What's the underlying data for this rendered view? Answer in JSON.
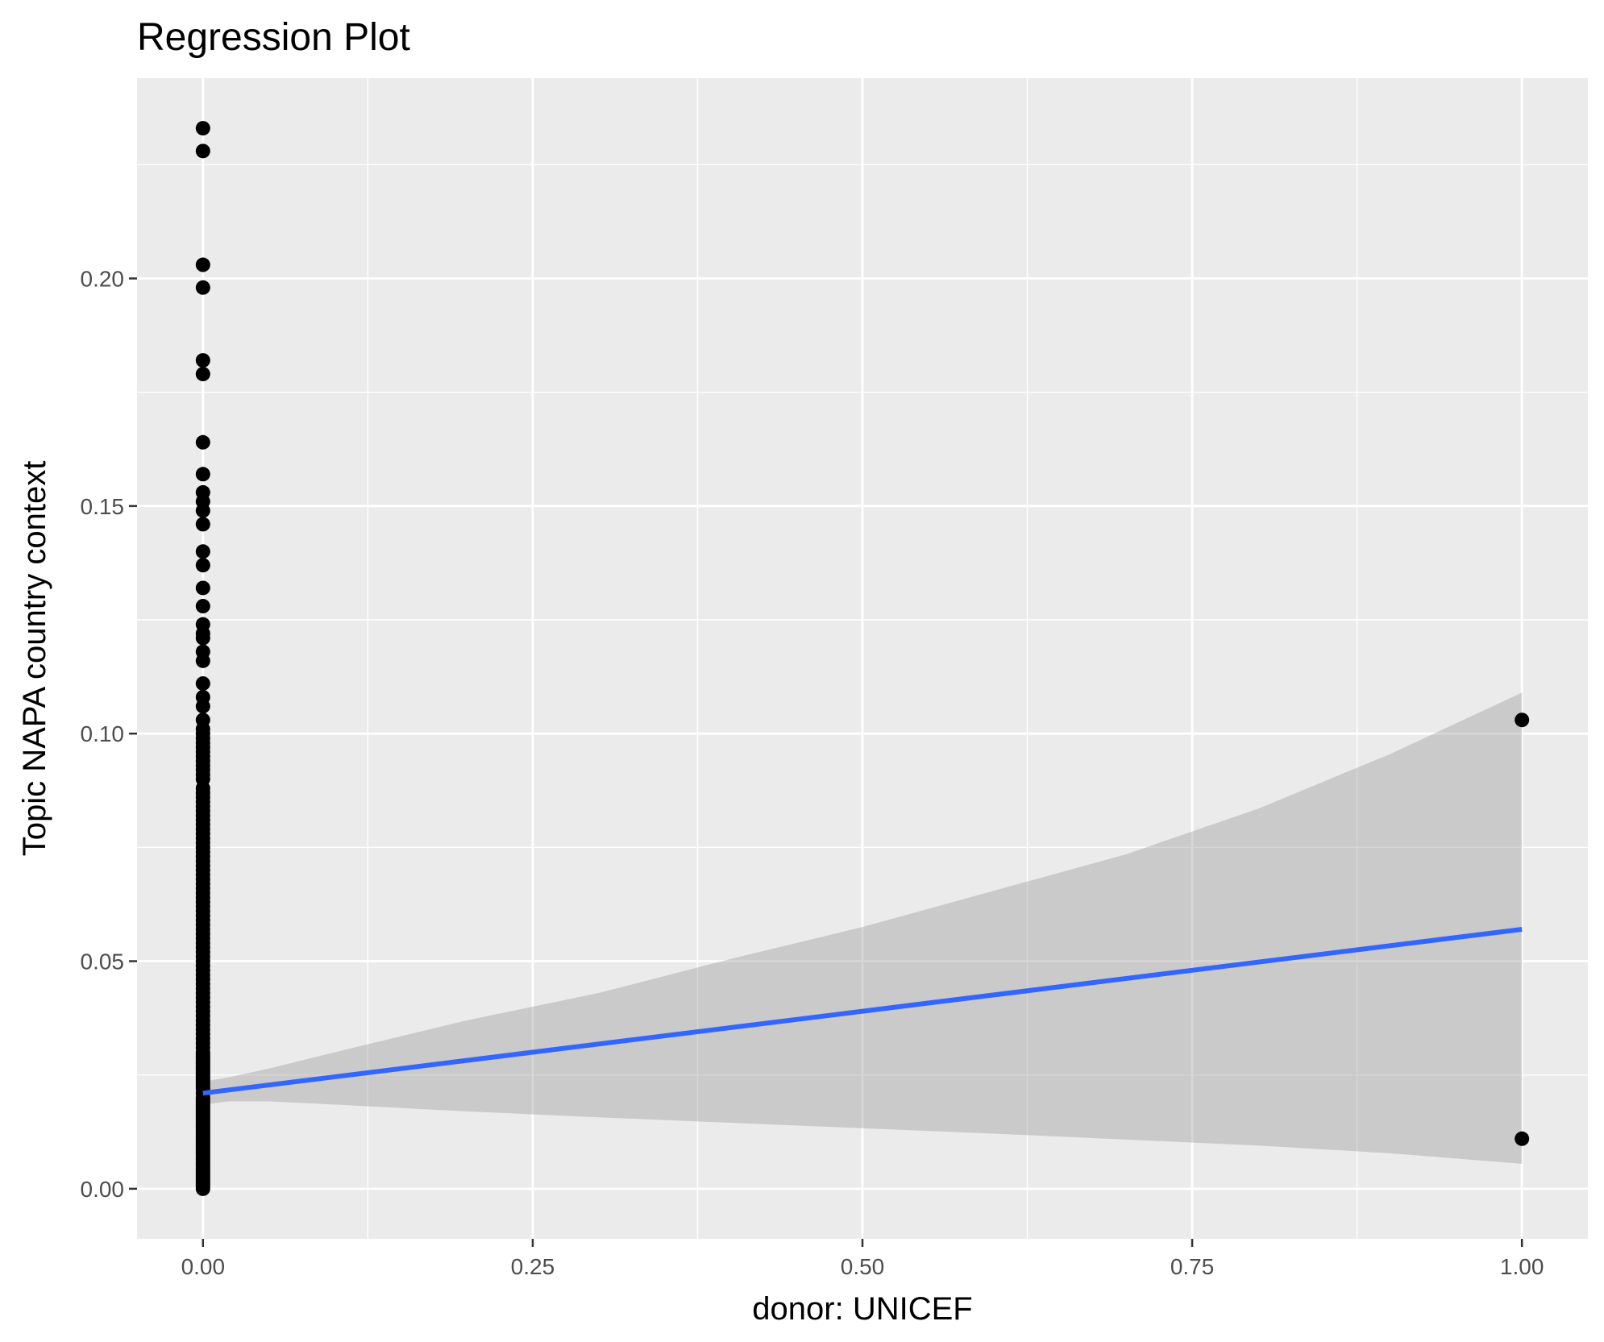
{
  "chart_data": {
    "type": "scatter",
    "title": "Regression Plot",
    "xlabel": "donor: UNICEF",
    "ylabel": "Topic NAPA country context",
    "xlim": [
      -0.05,
      1.05
    ],
    "ylim": [
      -0.011,
      0.244
    ],
    "x_ticks": [
      {
        "value": 0.0,
        "label": "0.00"
      },
      {
        "value": 0.25,
        "label": "0.25"
      },
      {
        "value": 0.5,
        "label": "0.50"
      },
      {
        "value": 0.75,
        "label": "0.75"
      },
      {
        "value": 1.0,
        "label": "1.00"
      }
    ],
    "y_ticks": [
      {
        "value": 0.0,
        "label": "0.00"
      },
      {
        "value": 0.05,
        "label": "0.05"
      },
      {
        "value": 0.1,
        "label": "0.10"
      },
      {
        "value": 0.15,
        "label": "0.15"
      },
      {
        "value": 0.2,
        "label": "0.20"
      }
    ],
    "grid": true,
    "legend": "none",
    "points": {
      "x": [
        0,
        0,
        0,
        0,
        0,
        0,
        0,
        0,
        0,
        0,
        0,
        0,
        0,
        0,
        0,
        0,
        0,
        0,
        0,
        0,
        0,
        0,
        0,
        0,
        0,
        0,
        0,
        0,
        0,
        0,
        0,
        0,
        0,
        0,
        0,
        0,
        0,
        0,
        0,
        0,
        0,
        0,
        0,
        0,
        0,
        0,
        0,
        0,
        0,
        0,
        0,
        0,
        0,
        0,
        0,
        0,
        0,
        0,
        0,
        0,
        0,
        0,
        0,
        0,
        0,
        0,
        0,
        0,
        0,
        0,
        0,
        0,
        0,
        0,
        0,
        0,
        0,
        0,
        0,
        0,
        0,
        0,
        0,
        0,
        0,
        0,
        0,
        0,
        0,
        0,
        0,
        0,
        0,
        0,
        0,
        0,
        0,
        0,
        0,
        0,
        0,
        0,
        0,
        0,
        0,
        0,
        0,
        0,
        0,
        0,
        0,
        0,
        0,
        0,
        0,
        0,
        0,
        0,
        0,
        0,
        0,
        0,
        0,
        0,
        0,
        0,
        0,
        0,
        0,
        0,
        0,
        0,
        0,
        0,
        0,
        0,
        0,
        0,
        0,
        0,
        0,
        0,
        0,
        0,
        0,
        0,
        0,
        0,
        0,
        0,
        0,
        0,
        0,
        0,
        1,
        1
      ],
      "y": [
        0.233,
        0.228,
        0.203,
        0.198,
        0.182,
        0.179,
        0.164,
        0.157,
        0.153,
        0.151,
        0.149,
        0.146,
        0.14,
        0.137,
        0.132,
        0.128,
        0.124,
        0.122,
        0.121,
        0.118,
        0.116,
        0.111,
        0.108,
        0.106,
        0.103,
        0.101,
        0.1,
        0.099,
        0.098,
        0.097,
        0.096,
        0.095,
        0.094,
        0.093,
        0.092,
        0.091,
        0.09,
        0.088,
        0.087,
        0.086,
        0.085,
        0.084,
        0.083,
        0.082,
        0.081,
        0.08,
        0.079,
        0.078,
        0.077,
        0.076,
        0.075,
        0.074,
        0.073,
        0.072,
        0.071,
        0.07,
        0.069,
        0.068,
        0.067,
        0.066,
        0.065,
        0.064,
        0.063,
        0.062,
        0.061,
        0.06,
        0.059,
        0.058,
        0.057,
        0.056,
        0.055,
        0.054,
        0.053,
        0.052,
        0.051,
        0.05,
        0.049,
        0.048,
        0.047,
        0.046,
        0.045,
        0.044,
        0.043,
        0.042,
        0.041,
        0.04,
        0.039,
        0.038,
        0.037,
        0.036,
        0.035,
        0.034,
        0.033,
        0.032,
        0.031,
        0.03,
        0.029,
        0.028,
        0.027,
        0.026,
        0.025,
        0.024,
        0.023,
        0.022,
        0.021,
        0.02,
        0.019,
        0.018,
        0.017,
        0.016,
        0.015,
        0.014,
        0.013,
        0.012,
        0.011,
        0.01,
        0.009,
        0.008,
        0.007,
        0.006,
        0.005,
        0.004,
        0.003,
        0.002,
        0.001,
        0.0,
        0.0095,
        0.0085,
        0.0075,
        0.0065,
        0.0055,
        0.0045,
        0.0035,
        0.0025,
        0.0015,
        0.0005,
        0.0195,
        0.0185,
        0.0175,
        0.0165,
        0.0155,
        0.0145,
        0.0135,
        0.0125,
        0.0115,
        0.0105,
        0.0295,
        0.0285,
        0.0275,
        0.0265,
        0.0255,
        0.0245,
        0.0235,
        0.0225,
        0.103,
        0.011
      ]
    },
    "regression": {
      "x": [
        0.0,
        1.0
      ],
      "y": [
        0.021,
        0.057
      ],
      "color": "#3366FF"
    },
    "confidence_band": {
      "x": [
        0.0,
        0.02,
        0.05,
        0.1,
        0.2,
        0.3,
        0.4,
        0.5,
        0.6,
        0.7,
        0.8,
        0.9,
        1.0
      ],
      "lower": [
        0.0185,
        0.0192,
        0.0192,
        0.0185,
        0.017,
        0.0157,
        0.0145,
        0.0133,
        0.0121,
        0.0108,
        0.0095,
        0.0078,
        0.0055
      ],
      "upper": [
        0.0235,
        0.0245,
        0.0264,
        0.03,
        0.037,
        0.043,
        0.0505,
        0.0575,
        0.0655,
        0.0735,
        0.0835,
        0.0955,
        0.109
      ],
      "color": "#999999"
    },
    "colors": {
      "panel_background": "#EBEBEB",
      "grid": "#FFFFFF",
      "point": "#000000"
    }
  }
}
